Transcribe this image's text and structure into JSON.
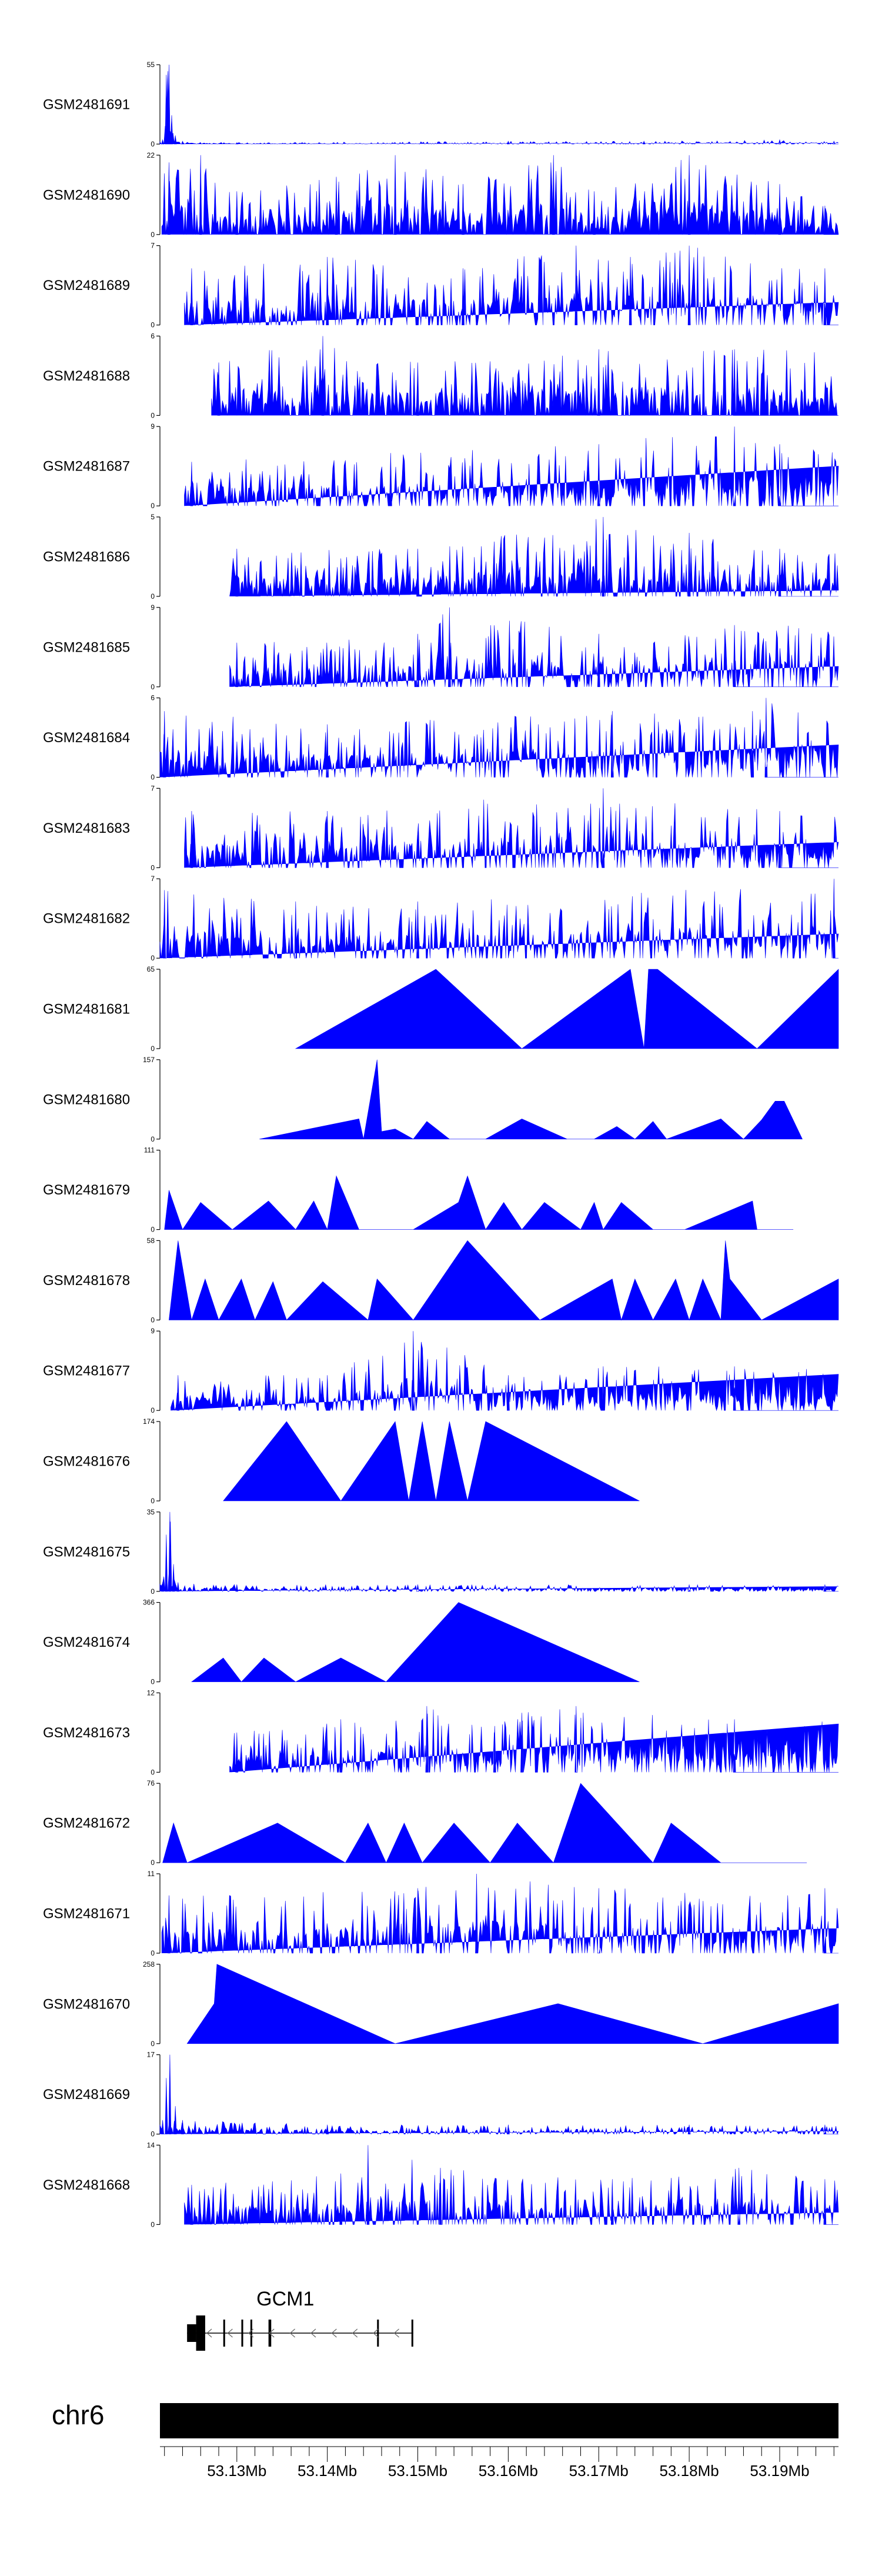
{
  "chart_data": {
    "type": "area",
    "title": "",
    "xlabel": "",
    "ylabel": "",
    "xlim": [
      53.1215,
      53.1965
    ],
    "x_unit": "Mb",
    "fill_color": "#0000ff",
    "tracks": [
      {
        "name": "GSM2481691",
        "ymax": 55,
        "ymax_label": "55",
        "ymin_label": "0",
        "style": "dense",
        "seed": 11,
        "x": [
          53.1218,
          53.1222,
          53.1225,
          53.1228,
          53.1232,
          53.124,
          53.13,
          53.16,
          53.175,
          53.19,
          53.196
        ],
        "y": [
          3,
          48,
          55,
          20,
          6,
          2,
          1,
          2,
          2,
          3,
          2
        ]
      },
      {
        "name": "GSM2481690",
        "ymax": 22,
        "ymax_label": "22",
        "ymin_label": "0",
        "style": "dense",
        "seed": 12,
        "x": [
          53.1225,
          53.126,
          53.13,
          53.141,
          53.1475,
          53.155,
          53.165,
          53.1695,
          53.18,
          53.19,
          53.195
        ],
        "y": [
          20,
          22,
          12,
          16,
          22,
          14,
          22,
          12,
          22,
          14,
          8
        ]
      },
      {
        "name": "GSM2481689",
        "ymax": 7,
        "ymax_label": "7",
        "ymin_label": "0",
        "style": "dense",
        "seed": 13,
        "x": [
          53.125,
          53.14,
          53.155,
          53.1675,
          53.1735,
          53.18,
          53.195
        ],
        "y": [
          5,
          6,
          5,
          7,
          6,
          7,
          5
        ]
      },
      {
        "name": "GSM2481688",
        "ymax": 6,
        "ymax_label": "6",
        "ymin_label": "0",
        "style": "dense",
        "seed": 14,
        "x": [
          53.128,
          53.1395,
          53.15,
          53.17,
          53.185
        ],
        "y": [
          4,
          6,
          4,
          5,
          5
        ]
      },
      {
        "name": "GSM2481687",
        "ymax": 9,
        "ymax_label": "9",
        "ymin_label": "0",
        "style": "dense",
        "seed": 15,
        "x": [
          53.125,
          53.147,
          53.17,
          53.185,
          53.19
        ],
        "y": [
          5,
          6,
          7,
          9,
          7
        ]
      },
      {
        "name": "GSM2481686",
        "ymax": 5,
        "ymax_label": "5",
        "ymin_label": "0",
        "style": "dense",
        "seed": 16,
        "x": [
          53.13,
          53.15,
          53.1705,
          53.18,
          53.19
        ],
        "y": [
          3,
          3,
          5,
          4,
          3
        ]
      },
      {
        "name": "GSM2481685",
        "ymax": 9,
        "ymax_label": "9",
        "ymin_label": "0",
        "style": "dense",
        "seed": 17,
        "x": [
          53.13,
          53.15,
          53.1535,
          53.17,
          53.185
        ],
        "y": [
          5,
          6,
          9,
          6,
          7
        ]
      },
      {
        "name": "GSM2481684",
        "ymax": 6,
        "ymax_label": "6",
        "ymin_label": "0",
        "style": "dense",
        "seed": 18,
        "x": [
          53.122,
          53.14,
          53.1715,
          53.187,
          53.1885
        ],
        "y": [
          5,
          4,
          5,
          5,
          6
        ]
      },
      {
        "name": "GSM2481683",
        "ymax": 7,
        "ymax_label": "7",
        "ymin_label": "0",
        "style": "dense",
        "seed": 19,
        "x": [
          53.125,
          53.14,
          53.1705,
          53.19
        ],
        "y": [
          5,
          5,
          7,
          5
        ]
      },
      {
        "name": "GSM2481682",
        "ymax": 7,
        "ymax_label": "7",
        "ymin_label": "0",
        "style": "dense",
        "seed": 20,
        "x": [
          53.122,
          53.1365,
          53.15,
          53.196
        ],
        "y": [
          6,
          5,
          5,
          7
        ]
      },
      {
        "name": "GSM2481681",
        "ymax": 65,
        "ymax_label": "65",
        "ymin_label": "0",
        "style": "poly",
        "x": [
          53.1365,
          53.152,
          53.1615,
          53.1735,
          53.175,
          53.1755,
          53.1765,
          53.1875,
          53.1965
        ],
        "y": [
          0,
          65,
          0,
          65,
          0,
          65,
          65,
          0,
          65
        ]
      },
      {
        "name": "GSM2481680",
        "ymax": 157,
        "ymax_label": "157",
        "ymin_label": "0",
        "style": "poly",
        "x": [
          53.1325,
          53.1435,
          53.144,
          53.1455,
          53.146,
          53.1475,
          53.1495,
          53.151,
          53.1535,
          53.1575,
          53.1615,
          53.1665,
          53.1695,
          53.172,
          53.174,
          53.176,
          53.1775,
          53.1835,
          53.186,
          53.188,
          53.1895,
          53.1905,
          53.1925
        ],
        "y": [
          0,
          40,
          0,
          157,
          15,
          20,
          0,
          35,
          0,
          0,
          40,
          0,
          0,
          25,
          0,
          35,
          0,
          40,
          0,
          38,
          75,
          75,
          0
        ]
      },
      {
        "name": "GSM2481679",
        "ymax": 111,
        "ymax_label": "111",
        "ymin_label": "0",
        "style": "poly",
        "x": [
          53.122,
          53.1225,
          53.124,
          53.126,
          53.1295,
          53.1335,
          53.1365,
          53.1385,
          53.14,
          53.141,
          53.1435,
          53.1495,
          53.1545,
          53.1555,
          53.1575,
          53.1595,
          53.1615,
          53.164,
          53.168,
          53.1695,
          53.1705,
          53.1725,
          53.176,
          53.1795,
          53.187,
          53.1875,
          53.1915
        ],
        "y": [
          0,
          55,
          0,
          38,
          0,
          40,
          0,
          40,
          0,
          75,
          0,
          0,
          38,
          75,
          0,
          38,
          0,
          38,
          0,
          38,
          0,
          38,
          0,
          0,
          40,
          0,
          0
        ]
      },
      {
        "name": "GSM2481678",
        "ymax": 58,
        "ymax_label": "58",
        "ymin_label": "0",
        "style": "poly",
        "x": [
          53.1225,
          53.1235,
          53.125,
          53.1265,
          53.128,
          53.1305,
          53.132,
          53.134,
          53.1355,
          53.1395,
          53.1445,
          53.1455,
          53.1495,
          53.1555,
          53.1635,
          53.1715,
          53.1725,
          53.174,
          53.176,
          53.1785,
          53.18,
          53.1815,
          53.1835,
          53.184,
          53.1845,
          53.188,
          53.1965
        ],
        "y": [
          0,
          58,
          0,
          30,
          0,
          30,
          0,
          28,
          0,
          28,
          0,
          30,
          0,
          58,
          0,
          30,
          0,
          30,
          0,
          30,
          0,
          30,
          0,
          58,
          30,
          0,
          30
        ]
      },
      {
        "name": "GSM2481677",
        "ymax": 9,
        "ymax_label": "9",
        "ymin_label": "0",
        "style": "dense",
        "seed": 27,
        "x": [
          53.1235,
          53.14,
          53.1495,
          53.16,
          53.1705,
          53.185
        ],
        "y": [
          4,
          4,
          9,
          4,
          5,
          5
        ]
      },
      {
        "name": "GSM2481676",
        "ymax": 174,
        "ymax_label": "174",
        "ymin_label": "0",
        "style": "poly",
        "x": [
          53.1285,
          53.1355,
          53.1415,
          53.1475,
          53.149,
          53.1505,
          53.152,
          53.1535,
          53.1555,
          53.1575,
          53.1745
        ],
        "y": [
          0,
          174,
          0,
          174,
          0,
          174,
          0,
          174,
          0,
          174,
          0
        ]
      },
      {
        "name": "GSM2481675",
        "ymax": 35,
        "ymax_label": "35",
        "ymin_label": "0",
        "style": "dense",
        "seed": 29,
        "x": [
          53.1218,
          53.1222,
          53.1226,
          53.123,
          53.1235,
          53.13,
          53.15,
          53.18,
          53.195
        ],
        "y": [
          4,
          25,
          35,
          12,
          4,
          3,
          3,
          3,
          3
        ]
      },
      {
        "name": "GSM2481674",
        "ymax": 366,
        "ymax_label": "366",
        "ymin_label": "0",
        "style": "poly",
        "x": [
          53.125,
          53.1285,
          53.1305,
          53.133,
          53.1365,
          53.1415,
          53.1465,
          53.1545,
          53.1745
        ],
        "y": [
          0,
          110,
          0,
          110,
          0,
          110,
          0,
          366,
          0
        ]
      },
      {
        "name": "GSM2481673",
        "ymax": 12,
        "ymax_label": "12",
        "ymin_label": "0",
        "style": "dense",
        "seed": 31,
        "x": [
          53.13,
          53.1415,
          53.151,
          53.1585,
          53.1615,
          53.1675,
          53.185
        ],
        "y": [
          6,
          8,
          10,
          7,
          9,
          10,
          8
        ]
      },
      {
        "name": "GSM2481672",
        "ymax": 76,
        "ymax_label": "76",
        "ymin_label": "0",
        "style": "poly",
        "x": [
          53.1218,
          53.123,
          53.1245,
          53.1345,
          53.142,
          53.1445,
          53.1465,
          53.1485,
          53.1505,
          53.154,
          53.158,
          53.161,
          53.165,
          53.1665,
          53.168,
          53.172,
          53.176,
          53.178,
          53.1835,
          53.193
        ],
        "y": [
          0,
          38,
          0,
          38,
          0,
          38,
          0,
          38,
          0,
          38,
          0,
          38,
          0,
          38,
          76,
          38,
          0,
          38,
          0,
          0
        ]
      },
      {
        "name": "GSM2481671",
        "ymax": 11,
        "ymax_label": "11",
        "ymin_label": "0",
        "style": "dense",
        "seed": 33,
        "x": [
          53.1225,
          53.15,
          53.1565,
          53.17,
          53.195
        ],
        "y": [
          8,
          9,
          11,
          9,
          9
        ]
      },
      {
        "name": "GSM2481670",
        "ymax": 258,
        "ymax_label": "258",
        "ymin_label": "0",
        "style": "poly",
        "x": [
          53.1245,
          53.1275,
          53.1278,
          53.1475,
          53.1655,
          53.1815,
          53.1965
        ],
        "y": [
          0,
          130,
          258,
          0,
          130,
          0,
          130
        ]
      },
      {
        "name": "GSM2481669",
        "ymax": 17,
        "ymax_label": "17",
        "ymin_label": "0",
        "style": "dense",
        "seed": 35,
        "x": [
          53.1218,
          53.1222,
          53.1226,
          53.1232,
          53.124,
          53.14,
          53.16,
          53.18,
          53.195
        ],
        "y": [
          3,
          12,
          17,
          6,
          3,
          2,
          2,
          2,
          2
        ]
      },
      {
        "name": "GSM2481668",
        "ymax": 14,
        "ymax_label": "14",
        "ymin_label": "0",
        "style": "dense",
        "seed": 36,
        "x": [
          53.125,
          53.1415,
          53.1445,
          53.1525,
          53.1715,
          53.1855,
          53.195
        ],
        "y": [
          7,
          9,
          14,
          10,
          8,
          10,
          8
        ]
      }
    ],
    "gene": {
      "name": "GCM1",
      "strand": "-",
      "start": 53.1245,
      "end": 53.1495,
      "exons": [
        [
          53.1245,
          53.1255
        ],
        [
          53.1255,
          53.1265
        ],
        [
          53.1285,
          53.1287
        ],
        [
          53.1305,
          53.1307
        ],
        [
          53.1315,
          53.1317
        ],
        [
          53.1335,
          53.1338
        ],
        [
          53.1455,
          53.1457
        ],
        [
          53.1493,
          53.1495
        ]
      ]
    },
    "chromosome": {
      "name": "chr6",
      "ticks": [
        53.13,
        53.14,
        53.15,
        53.16,
        53.17,
        53.18,
        53.19
      ],
      "tick_labels": [
        "53.13Mb",
        "53.14Mb",
        "53.15Mb",
        "53.16Mb",
        "53.17Mb",
        "53.18Mb",
        "53.19Mb"
      ]
    }
  }
}
